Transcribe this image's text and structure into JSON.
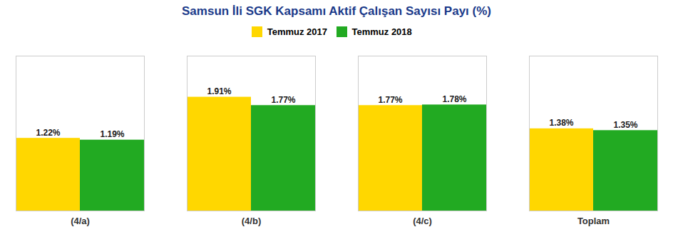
{
  "chart_data": {
    "type": "bar",
    "title": "Samsun İli SGK Kapsamı Aktif Çalışan Sayısı Payı (%)",
    "categories": [
      "(4/a)",
      "(4/b)",
      "(4/c)",
      "Toplam"
    ],
    "series": [
      {
        "name": "Temmuz 2017",
        "color": "#FFD700",
        "values": [
          1.22,
          1.91,
          1.77,
          1.38
        ],
        "value_labels": [
          "1.22%",
          "1.91%",
          "1.77%",
          "1.38%"
        ]
      },
      {
        "name": "Temmuz 2018",
        "color": "#22AA22",
        "values": [
          1.19,
          1.77,
          1.78,
          1.35
        ],
        "value_labels": [
          "1.19%",
          "1.77%",
          "1.78%",
          "1.35%"
        ]
      }
    ],
    "ylim": [
      0,
      2.6
    ],
    "tick_labels": "x",
    "data_labels": true,
    "grid": false,
    "legend": "upper center"
  }
}
